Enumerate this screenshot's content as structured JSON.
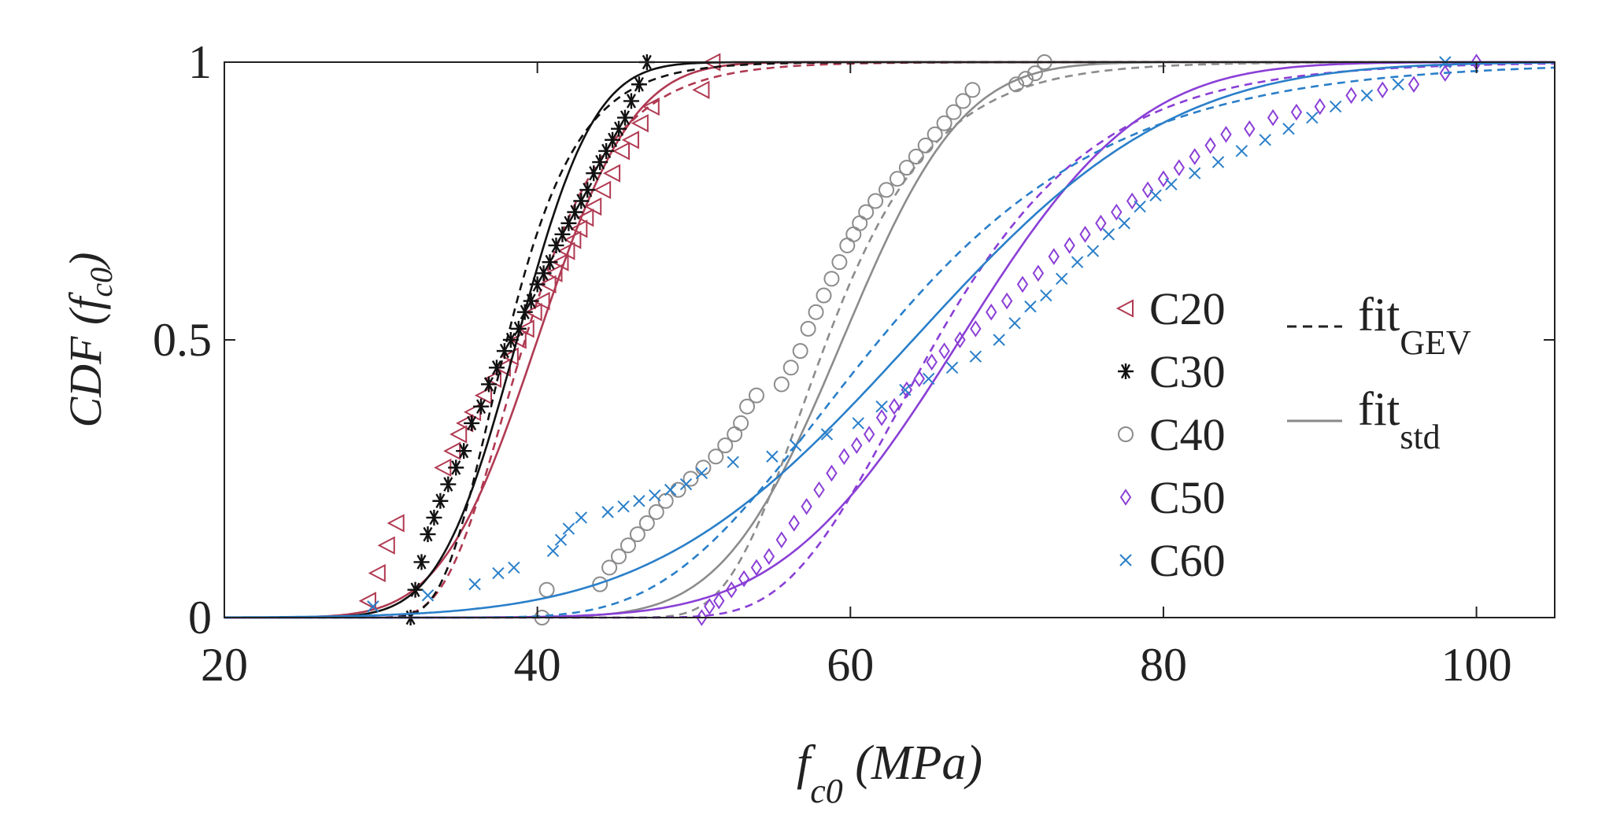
{
  "chart_data": {
    "type": "scatter",
    "title": "",
    "xlabel": {
      "main": "f",
      "sub": "c0",
      "unit": " (MPa)"
    },
    "ylabel": {
      "prefix": "CDF (",
      "main": "f",
      "sub": "c0",
      "suffix": ")"
    },
    "xlim": [
      20,
      105
    ],
    "ylim": [
      0,
      1
    ],
    "xticks": [
      20,
      40,
      60,
      80,
      100
    ],
    "yticks": [
      0,
      0.5,
      1
    ],
    "ytick_labels": [
      "0",
      "0.5",
      "1"
    ],
    "grid": false,
    "legend_position": "right-middle",
    "series": [
      {
        "name": "C20",
        "color": "#b03a52",
        "marker": "triangle-left",
        "fit": {
          "mu": 40.0,
          "sigma": 4.8
        },
        "x": [
          29.2,
          29.8,
          30.4,
          31.0,
          34.0,
          34.6,
          35.0,
          35.4,
          35.9,
          36.6,
          37.2,
          37.8,
          38.3,
          38.8,
          39.3,
          39.8,
          40.3,
          40.7,
          41.1,
          41.5,
          41.9,
          42.3,
          42.7,
          43.1,
          43.6,
          44.2,
          44.8,
          45.4,
          46.0,
          46.6,
          47.3,
          50.5,
          51.2
        ],
        "y": [
          0.03,
          0.08,
          0.13,
          0.17,
          0.27,
          0.3,
          0.33,
          0.35,
          0.37,
          0.4,
          0.43,
          0.45,
          0.47,
          0.5,
          0.52,
          0.55,
          0.57,
          0.6,
          0.62,
          0.64,
          0.66,
          0.68,
          0.7,
          0.72,
          0.74,
          0.77,
          0.8,
          0.84,
          0.86,
          0.89,
          0.92,
          0.95,
          1.0
        ]
      },
      {
        "name": "C30",
        "color": "#111111",
        "marker": "asterisk",
        "fit": {
          "mu": 38.7,
          "sigma": 3.9
        },
        "x": [
          31.9,
          32.2,
          32.6,
          33.0,
          33.4,
          33.8,
          34.3,
          34.8,
          35.3,
          35.8,
          36.4,
          36.9,
          37.4,
          37.9,
          38.3,
          38.8,
          39.2,
          39.6,
          40.0,
          40.4,
          40.8,
          41.2,
          41.6,
          42.0,
          42.4,
          42.8,
          43.2,
          43.6,
          44.0,
          44.4,
          44.8,
          45.2,
          45.6,
          46.0,
          46.5,
          47.0
        ],
        "y": [
          0.0,
          0.05,
          0.1,
          0.15,
          0.18,
          0.21,
          0.24,
          0.27,
          0.3,
          0.35,
          0.38,
          0.42,
          0.45,
          0.48,
          0.5,
          0.52,
          0.55,
          0.57,
          0.6,
          0.62,
          0.64,
          0.67,
          0.69,
          0.71,
          0.73,
          0.75,
          0.77,
          0.8,
          0.82,
          0.84,
          0.86,
          0.88,
          0.9,
          0.93,
          0.96,
          1.0
        ]
      },
      {
        "name": "C40",
        "color": "#8c8c8c",
        "marker": "circle",
        "fit": {
          "mu": 59.5,
          "sigma": 6.0
        },
        "x": [
          40.3,
          40.6,
          44.0,
          44.6,
          45.2,
          45.8,
          46.4,
          47.0,
          47.6,
          48.2,
          49.0,
          49.8,
          50.6,
          51.4,
          52.0,
          52.6,
          53.0,
          53.4,
          54.0,
          55.6,
          56.2,
          56.8,
          57.3,
          57.8,
          58.3,
          58.8,
          59.3,
          59.8,
          60.2,
          60.6,
          61.0,
          61.6,
          62.3,
          63.0,
          63.6,
          64.2,
          64.8,
          65.4,
          66.0,
          66.6,
          67.2,
          67.8,
          70.6,
          71.2,
          71.8,
          72.4
        ],
        "y": [
          0.0,
          0.05,
          0.06,
          0.09,
          0.11,
          0.13,
          0.15,
          0.17,
          0.19,
          0.21,
          0.23,
          0.25,
          0.27,
          0.29,
          0.31,
          0.33,
          0.35,
          0.38,
          0.4,
          0.42,
          0.45,
          0.48,
          0.52,
          0.55,
          0.58,
          0.61,
          0.64,
          0.67,
          0.69,
          0.71,
          0.73,
          0.75,
          0.77,
          0.79,
          0.81,
          0.83,
          0.85,
          0.87,
          0.89,
          0.91,
          0.93,
          0.95,
          0.96,
          0.97,
          0.98,
          1.0
        ]
      },
      {
        "name": "C50",
        "color": "#8a3fd6",
        "marker": "diamond",
        "fit": {
          "mu": 67.0,
          "sigma": 9.0
        },
        "x": [
          50.5,
          51.0,
          51.6,
          52.4,
          53.2,
          54.0,
          54.8,
          55.6,
          56.4,
          57.2,
          58.0,
          58.8,
          59.6,
          60.4,
          61.2,
          62.0,
          62.8,
          63.6,
          64.4,
          65.2,
          66.0,
          67.0,
          68.0,
          69.0,
          70.0,
          71.0,
          72.0,
          73.0,
          74.0,
          75.0,
          76.0,
          77.0,
          78.0,
          79.0,
          80.0,
          81.0,
          82.0,
          83.0,
          84.0,
          85.5,
          87.0,
          88.5,
          90.0,
          92.0,
          94.0,
          96.0,
          98.0,
          100.0
        ],
        "y": [
          0.0,
          0.02,
          0.03,
          0.05,
          0.07,
          0.09,
          0.11,
          0.14,
          0.17,
          0.2,
          0.23,
          0.26,
          0.29,
          0.31,
          0.33,
          0.36,
          0.38,
          0.41,
          0.43,
          0.46,
          0.48,
          0.5,
          0.52,
          0.55,
          0.57,
          0.6,
          0.62,
          0.65,
          0.67,
          0.69,
          0.71,
          0.73,
          0.75,
          0.77,
          0.79,
          0.81,
          0.83,
          0.85,
          0.87,
          0.88,
          0.9,
          0.91,
          0.92,
          0.94,
          0.95,
          0.96,
          0.98,
          1.0
        ]
      },
      {
        "name": "C60",
        "color": "#2a7fc9",
        "marker": "x",
        "fit": {
          "mu": 64.0,
          "sigma": 13.0
        },
        "x": [
          29.5,
          33.0,
          36.0,
          37.5,
          38.5,
          41.0,
          41.5,
          42.0,
          42.8,
          44.5,
          45.5,
          46.5,
          47.5,
          48.5,
          49.5,
          50.5,
          52.5,
          55.0,
          56.5,
          58.5,
          60.5,
          62.0,
          63.5,
          65.0,
          66.5,
          68.0,
          69.5,
          70.5,
          71.5,
          72.5,
          73.5,
          74.5,
          75.5,
          76.5,
          77.5,
          78.5,
          79.5,
          80.5,
          82.0,
          83.5,
          85.0,
          86.5,
          88.0,
          89.5,
          91.0,
          93.0,
          95.0,
          98.0
        ],
        "y": [
          0.02,
          0.04,
          0.06,
          0.08,
          0.09,
          0.12,
          0.14,
          0.16,
          0.18,
          0.19,
          0.2,
          0.21,
          0.22,
          0.23,
          0.24,
          0.26,
          0.28,
          0.29,
          0.31,
          0.33,
          0.35,
          0.38,
          0.41,
          0.43,
          0.45,
          0.47,
          0.5,
          0.53,
          0.56,
          0.58,
          0.61,
          0.64,
          0.66,
          0.69,
          0.71,
          0.74,
          0.76,
          0.78,
          0.8,
          0.82,
          0.84,
          0.86,
          0.88,
          0.9,
          0.92,
          0.94,
          0.96,
          1.0
        ]
      }
    ],
    "fit_legend": [
      {
        "label": "fit",
        "sub": "GEV",
        "style": "dashed"
      },
      {
        "label": "fit",
        "sub": "std",
        "style": "solid"
      }
    ]
  }
}
